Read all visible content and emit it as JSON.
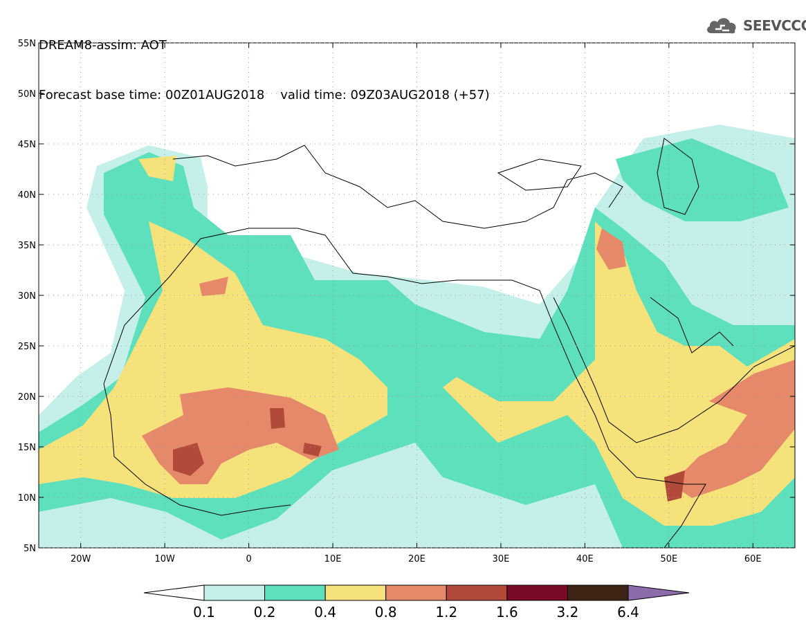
{
  "header": {
    "title": "DREAM8-assim: AOT",
    "base_time_label": "Forecast base time: 00Z01AUG2018",
    "valid_time_label": "valid time: 09Z03AUG2018 (+57)"
  },
  "logo": {
    "text": "SEEVCCC",
    "icon": "cloud-icon"
  },
  "map": {
    "lon_range": [
      -25,
      65
    ],
    "lat_range": [
      5,
      55
    ],
    "lon_ticks": [
      "20W",
      "10W",
      "0",
      "10E",
      "20E",
      "30E",
      "40E",
      "50E",
      "60E"
    ],
    "lat_ticks": [
      "5N",
      "10N",
      "15N",
      "20N",
      "25N",
      "30N",
      "35N",
      "40N",
      "45N",
      "50N",
      "55N"
    ]
  },
  "legend": {
    "labels": [
      "0.1",
      "0.2",
      "0.4",
      "0.8",
      "1.2",
      "1.6",
      "3.2",
      "6.4"
    ],
    "colors": [
      "#ffffff",
      "#c5f0ea",
      "#5ee0bd",
      "#f5e27a",
      "#e5896a",
      "#b24a3a",
      "#7a0a27",
      "#3e2415",
      "#8a6da9"
    ]
  }
}
